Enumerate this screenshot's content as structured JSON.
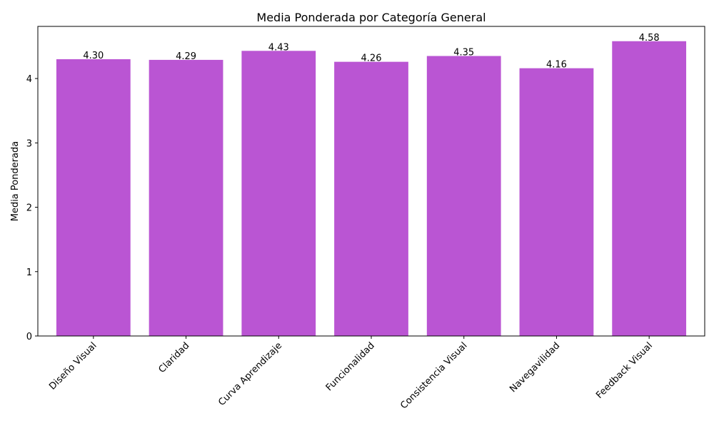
{
  "chart_data": {
    "type": "bar",
    "title": "Media Ponderada por Categoría General",
    "xlabel": "",
    "ylabel": "Media Ponderada",
    "categories": [
      "Diseño Visual",
      "Claridad",
      "Curva Aprendizaje",
      "Funcionalidad",
      "Consistencia Visual",
      "Navegavilidad",
      "Feedback Visual"
    ],
    "values": [
      4.3,
      4.29,
      4.43,
      4.26,
      4.35,
      4.16,
      4.58
    ],
    "value_labels": [
      "4.30",
      "4.29",
      "4.43",
      "4.26",
      "4.35",
      "4.16",
      "4.58"
    ],
    "ylim": [
      0,
      4.81
    ],
    "yticks": [
      0,
      1,
      2,
      3,
      4
    ],
    "ytick_labels": [
      "0",
      "1",
      "2",
      "3",
      "4"
    ],
    "bar_color": "#BA55D3",
    "grid": false,
    "legend": "none"
  }
}
